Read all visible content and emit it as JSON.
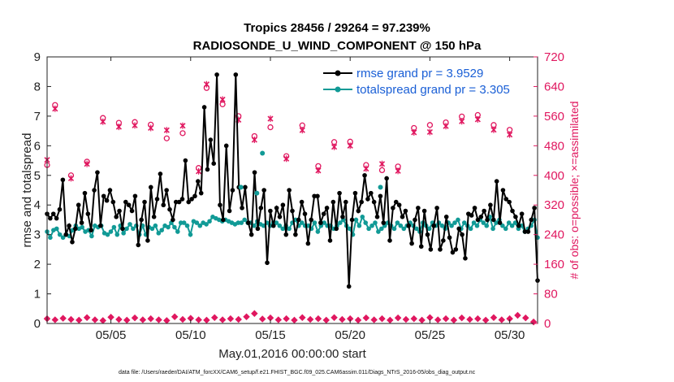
{
  "chart_data": {
    "type": "line",
    "title": "Tropics 28456 / 29264 = 97.239%",
    "subtitle": "RADIOSONDE_U_WIND_COMPONENT @ 150 hPa",
    "xlabel": "May.01,2016 00:00:00 start",
    "ylabel": "rmse and totalspread",
    "y2label": "# of obs: o=possible; ×=assimilated",
    "footer": "data file: /Users/raeder/DAI/ATM_forcXX/CAM6_setup/f.e21.FHIST_BGC.f09_025.CAM6assim.011/Diags_NTrS_2016-05/obs_diag_output.nc",
    "x_range": [
      1.0,
      31.75
    ],
    "ylim": [
      0,
      9
    ],
    "y2lim": [
      0,
      720
    ],
    "x_tick_positions": [
      5,
      10,
      15,
      20,
      25,
      30
    ],
    "x_tick_labels": [
      "05/05",
      "05/10",
      "05/15",
      "05/20",
      "05/25",
      "05/30"
    ],
    "y_ticks": [
      "0",
      "1",
      "2",
      "3",
      "4",
      "5",
      "6",
      "7",
      "8",
      "9"
    ],
    "y2_ticks": [
      "0",
      "80",
      "160",
      "240",
      "320",
      "400",
      "480",
      "560",
      "640",
      "720"
    ],
    "colors": {
      "rmse": "#000000",
      "spread": "#119a96",
      "obs": "#e0175f",
      "legend_text": "#1a5fd6"
    },
    "series": [
      {
        "name": "rmse grand pr = 3.9529",
        "values": [
          3.7,
          3.55,
          3.7,
          3.55,
          3.85,
          4.85,
          3.0,
          3.3,
          2.75,
          3.2,
          4.0,
          3.4,
          4.4,
          3.7,
          3.15,
          4.5,
          5.1,
          3.3,
          4.3,
          4.15,
          4.5,
          4.1,
          3.6,
          3.8,
          3.2,
          4.1,
          4.0,
          3.8,
          4.3,
          2.65,
          3.5,
          4.1,
          2.8,
          4.6,
          3.6,
          4.2,
          5.05,
          4.0,
          4.5,
          3.85,
          3.5,
          4.1,
          4.1,
          4.2,
          5.5,
          4.1,
          4.2,
          4.3,
          4.8,
          4.4,
          7.3,
          5.2,
          6.2,
          5.4,
          8.4,
          4.0,
          3.5,
          6.0,
          3.8,
          4.5,
          8.4,
          4.6,
          3.9,
          4.6,
          3.4,
          3.0,
          5.1,
          3.2,
          3.9,
          4.5,
          2.05,
          3.8,
          3.3,
          3.9,
          3.6,
          4.0,
          3.0,
          4.5,
          3.8,
          3.0,
          3.5,
          4.1,
          3.7,
          2.7,
          3.5,
          4.3,
          4.3,
          3.4,
          3.7,
          3.9,
          2.8,
          4.1,
          3.2,
          4.4,
          3.6,
          4.1,
          1.25,
          3.5,
          4.4,
          3.8,
          4.1,
          5.0,
          4.2,
          4.4,
          4.1,
          3.6,
          4.3,
          3.4,
          4.9,
          2.8,
          3.9,
          4.1,
          4.0,
          3.6,
          3.8,
          3.3,
          2.7,
          3.5,
          3.9,
          2.6,
          3.8,
          3.0,
          2.5,
          3.3,
          3.9,
          2.5,
          2.8,
          3.6,
          2.9,
          2.4,
          2.5,
          3.2,
          3.0,
          2.2,
          3.7,
          3.65,
          3.9,
          3.5,
          3.6,
          3.8,
          3.5,
          4.0,
          3.5,
          4.8,
          3.4,
          4.5,
          4.2,
          4.1,
          3.8,
          3.6,
          3.3,
          3.7,
          3.1,
          3.1,
          3.5,
          3.9,
          1.45
        ]
      },
      {
        "name": "totalspread grand pr = 3.305",
        "values": [
          3.1,
          2.9,
          3.15,
          3.2,
          3.0,
          2.9,
          3.0,
          2.95,
          3.15,
          3.3,
          3.2,
          3.25,
          3.1,
          3.15,
          2.95,
          3.3,
          3.25,
          3.3,
          3.05,
          3.0,
          3.1,
          3.25,
          3.0,
          3.3,
          3.05,
          3.2,
          3.35,
          3.2,
          3.3,
          3.0,
          3.3,
          3.0,
          3.25,
          3.2,
          3.3,
          3.05,
          3.15,
          3.3,
          3.25,
          3.4,
          3.25,
          3.1,
          3.4,
          3.4,
          3.3,
          3.0,
          3.45,
          3.4,
          3.3,
          3.4,
          3.35,
          3.45,
          3.6,
          3.55,
          3.5,
          3.45,
          3.5,
          3.45,
          3.4,
          3.35,
          3.4,
          3.4,
          3.5,
          3.4,
          3.4,
          3.3,
          3.45,
          3.35,
          3.3,
          3.4,
          3.3,
          3.4,
          3.4,
          3.3,
          3.2,
          3.3,
          3.2,
          3.4,
          3.5,
          3.3,
          3.4,
          3.3,
          3.3,
          3.2,
          3.4,
          3.1,
          3.3,
          3.4,
          3.3,
          3.3,
          3.2,
          3.3,
          3.4,
          3.5,
          3.3,
          3.2,
          3.0,
          3.5,
          3.3,
          3.6,
          3.4,
          3.2,
          3.3,
          3.4,
          3.1,
          3.2,
          3.3,
          3.4,
          3.3,
          3.2,
          3.4,
          3.3,
          3.2,
          3.3,
          3.4,
          3.3,
          3.2,
          3.1,
          3.4,
          3.3,
          3.2,
          3.4,
          3.3,
          3.4,
          3.3,
          3.2,
          3.4,
          3.3,
          3.4,
          3.5,
          3.2,
          3.4,
          3.3,
          3.2,
          3.4,
          3.3,
          3.5,
          3.4,
          3.3,
          3.6,
          3.2,
          3.4,
          3.5,
          3.3,
          3.2,
          3.4,
          3.3,
          3.4,
          3.2,
          3.3,
          3.1,
          3.2,
          3.3,
          3.5,
          2.9
        ]
      }
    ],
    "mid_spread_points": [
      {
        "x": 14.5,
        "y": 5.75
      },
      {
        "x": 14.15,
        "y": 4.4
      },
      {
        "x": 13.15,
        "y": 4.6
      },
      {
        "x": 21.9,
        "y": 4.6
      }
    ],
    "obs_possible_upper": [
      {
        "x": 1.0,
        "y": 428
      },
      {
        "x": 1.5,
        "y": 590
      },
      {
        "x": 2.5,
        "y": 400
      },
      {
        "x": 3.5,
        "y": 437
      },
      {
        "x": 4.5,
        "y": 555
      },
      {
        "x": 5.5,
        "y": 542
      },
      {
        "x": 6.5,
        "y": 544
      },
      {
        "x": 7.5,
        "y": 537
      },
      {
        "x": 8.5,
        "y": 500
      },
      {
        "x": 9.5,
        "y": 514
      },
      {
        "x": 10.5,
        "y": 420
      },
      {
        "x": 11.0,
        "y": 636
      },
      {
        "x": 12.0,
        "y": 592
      },
      {
        "x": 13.0,
        "y": 560
      },
      {
        "x": 14.0,
        "y": 506
      },
      {
        "x": 15.0,
        "y": 530
      },
      {
        "x": 16.0,
        "y": 452
      },
      {
        "x": 17.0,
        "y": 535
      },
      {
        "x": 18.0,
        "y": 425
      },
      {
        "x": 19.0,
        "y": 490
      },
      {
        "x": 20.0,
        "y": 491
      },
      {
        "x": 21.0,
        "y": 428
      },
      {
        "x": 22.0,
        "y": 414
      },
      {
        "x": 23.0,
        "y": 424
      },
      {
        "x": 24.0,
        "y": 528
      },
      {
        "x": 25.0,
        "y": 536
      },
      {
        "x": 26.0,
        "y": 543
      },
      {
        "x": 27.0,
        "y": 559
      },
      {
        "x": 28.0,
        "y": 563
      },
      {
        "x": 29.0,
        "y": 536
      },
      {
        "x": 30.0,
        "y": 523
      }
    ],
    "obs_assimilated_upper": [
      {
        "x": 1.0,
        "y": 442
      },
      {
        "x": 1.5,
        "y": 580
      },
      {
        "x": 2.5,
        "y": 392
      },
      {
        "x": 3.5,
        "y": 431
      },
      {
        "x": 4.5,
        "y": 545
      },
      {
        "x": 5.5,
        "y": 531
      },
      {
        "x": 6.5,
        "y": 535
      },
      {
        "x": 7.5,
        "y": 528
      },
      {
        "x": 8.5,
        "y": 522
      },
      {
        "x": 9.5,
        "y": 534
      },
      {
        "x": 10.5,
        "y": 411
      },
      {
        "x": 11.0,
        "y": 646
      },
      {
        "x": 12.0,
        "y": 605
      },
      {
        "x": 13.0,
        "y": 550
      },
      {
        "x": 14.0,
        "y": 496
      },
      {
        "x": 15.0,
        "y": 553
      },
      {
        "x": 16.0,
        "y": 445
      },
      {
        "x": 17.0,
        "y": 522
      },
      {
        "x": 18.0,
        "y": 413
      },
      {
        "x": 19.0,
        "y": 477
      },
      {
        "x": 20.0,
        "y": 480
      },
      {
        "x": 21.0,
        "y": 418
      },
      {
        "x": 22.0,
        "y": 431
      },
      {
        "x": 23.0,
        "y": 412
      },
      {
        "x": 24.0,
        "y": 516
      },
      {
        "x": 25.0,
        "y": 517
      },
      {
        "x": 26.0,
        "y": 533
      },
      {
        "x": 27.0,
        "y": 546
      },
      {
        "x": 28.0,
        "y": 551
      },
      {
        "x": 29.0,
        "y": 523
      },
      {
        "x": 30.0,
        "y": 510
      }
    ],
    "obs_possible_lower": [
      {
        "x": 1.0,
        "y": 13
      },
      {
        "x": 1.5,
        "y": 10
      },
      {
        "x": 2.0,
        "y": 14
      },
      {
        "x": 2.5,
        "y": 11
      },
      {
        "x": 3.0,
        "y": 9
      },
      {
        "x": 3.5,
        "y": 16
      },
      {
        "x": 4.0,
        "y": 10
      },
      {
        "x": 4.5,
        "y": 8
      },
      {
        "x": 5.0,
        "y": 17
      },
      {
        "x": 5.5,
        "y": 11
      },
      {
        "x": 6.0,
        "y": 9
      },
      {
        "x": 6.5,
        "y": 15
      },
      {
        "x": 7.0,
        "y": 10
      },
      {
        "x": 7.5,
        "y": 13
      },
      {
        "x": 8.0,
        "y": 10
      },
      {
        "x": 8.5,
        "y": 8
      },
      {
        "x": 9.0,
        "y": 18
      },
      {
        "x": 9.5,
        "y": 11
      },
      {
        "x": 10.0,
        "y": 14
      },
      {
        "x": 10.5,
        "y": 10
      },
      {
        "x": 11.0,
        "y": 9
      },
      {
        "x": 11.5,
        "y": 16
      },
      {
        "x": 12.0,
        "y": 10
      },
      {
        "x": 12.5,
        "y": 13
      },
      {
        "x": 13.0,
        "y": 11
      },
      {
        "x": 13.5,
        "y": 18
      },
      {
        "x": 14.0,
        "y": 27
      },
      {
        "x": 14.5,
        "y": 12
      },
      {
        "x": 15.0,
        "y": 15
      },
      {
        "x": 15.5,
        "y": 10
      },
      {
        "x": 16.0,
        "y": 13
      },
      {
        "x": 16.5,
        "y": 9
      },
      {
        "x": 17.0,
        "y": 16
      },
      {
        "x": 17.5,
        "y": 11
      },
      {
        "x": 18.0,
        "y": 13
      },
      {
        "x": 18.5,
        "y": 9
      },
      {
        "x": 19.0,
        "y": 16
      },
      {
        "x": 19.5,
        "y": 11
      },
      {
        "x": 20.0,
        "y": 13
      },
      {
        "x": 20.5,
        "y": 9
      },
      {
        "x": 21.0,
        "y": 15
      },
      {
        "x": 21.5,
        "y": 10
      },
      {
        "x": 22.0,
        "y": 13
      },
      {
        "x": 22.5,
        "y": 9
      },
      {
        "x": 23.0,
        "y": 15
      },
      {
        "x": 23.5,
        "y": 11
      },
      {
        "x": 24.0,
        "y": 13
      },
      {
        "x": 24.5,
        "y": 9
      },
      {
        "x": 25.0,
        "y": 16
      },
      {
        "x": 25.5,
        "y": 10
      },
      {
        "x": 26.0,
        "y": 13
      },
      {
        "x": 26.5,
        "y": 9
      },
      {
        "x": 27.0,
        "y": 15
      },
      {
        "x": 27.5,
        "y": 11
      },
      {
        "x": 28.0,
        "y": 13
      },
      {
        "x": 28.5,
        "y": 9
      },
      {
        "x": 29.0,
        "y": 16
      },
      {
        "x": 29.5,
        "y": 10
      },
      {
        "x": 30.0,
        "y": 13
      },
      {
        "x": 30.5,
        "y": 22
      },
      {
        "x": 31.0,
        "y": 15
      },
      {
        "x": 31.5,
        "y": 4
      }
    ],
    "legend_position": "top-right"
  }
}
